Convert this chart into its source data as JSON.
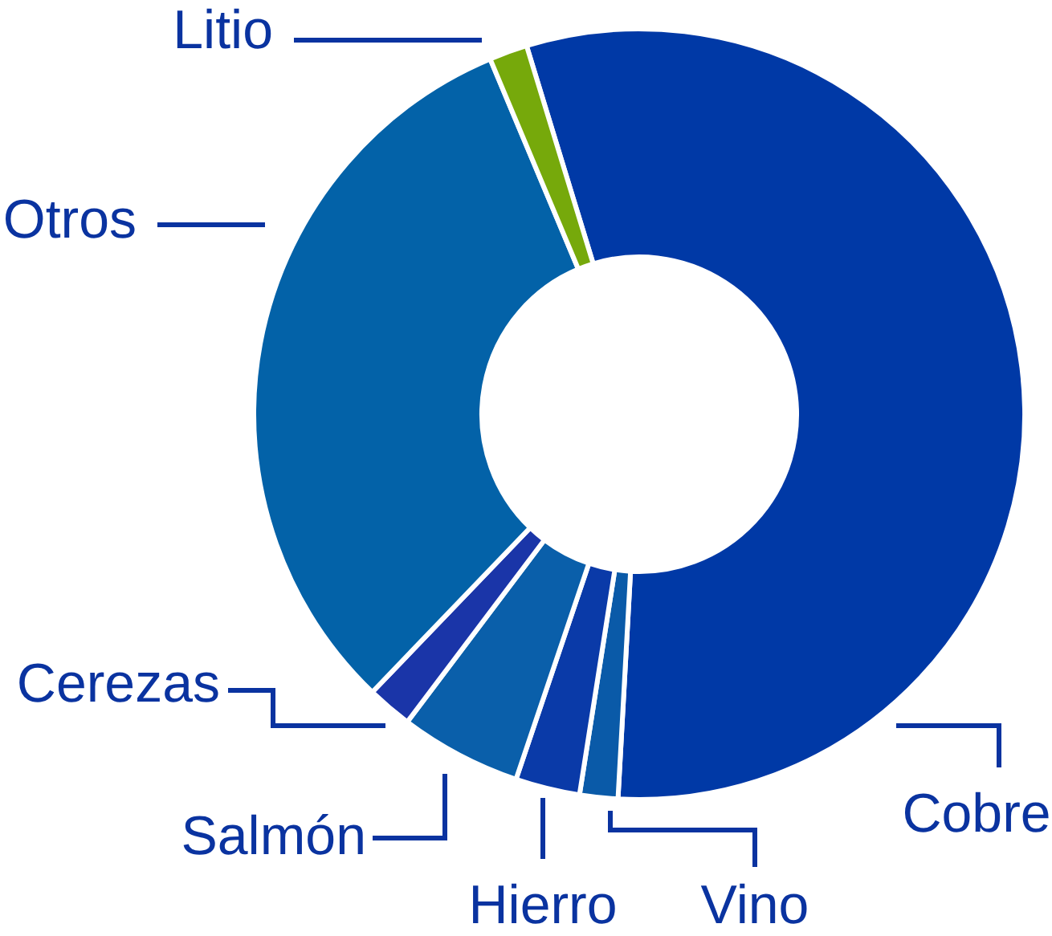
{
  "chart_data": {
    "type": "donut",
    "categories": [
      "Cobre",
      "Vino",
      "Hierro",
      "Salmón",
      "Cerezas",
      "Otros",
      "Litio"
    ],
    "values": [
      55.6,
      1.6,
      2.7,
      5.1,
      1.9,
      31.5,
      1.6
    ],
    "colors": [
      "#0039a6",
      "#0a5aa8",
      "#0a3aa8",
      "#0a5faa",
      "#1a35a8",
      "#0362a8",
      "#76a90b"
    ]
  }
}
